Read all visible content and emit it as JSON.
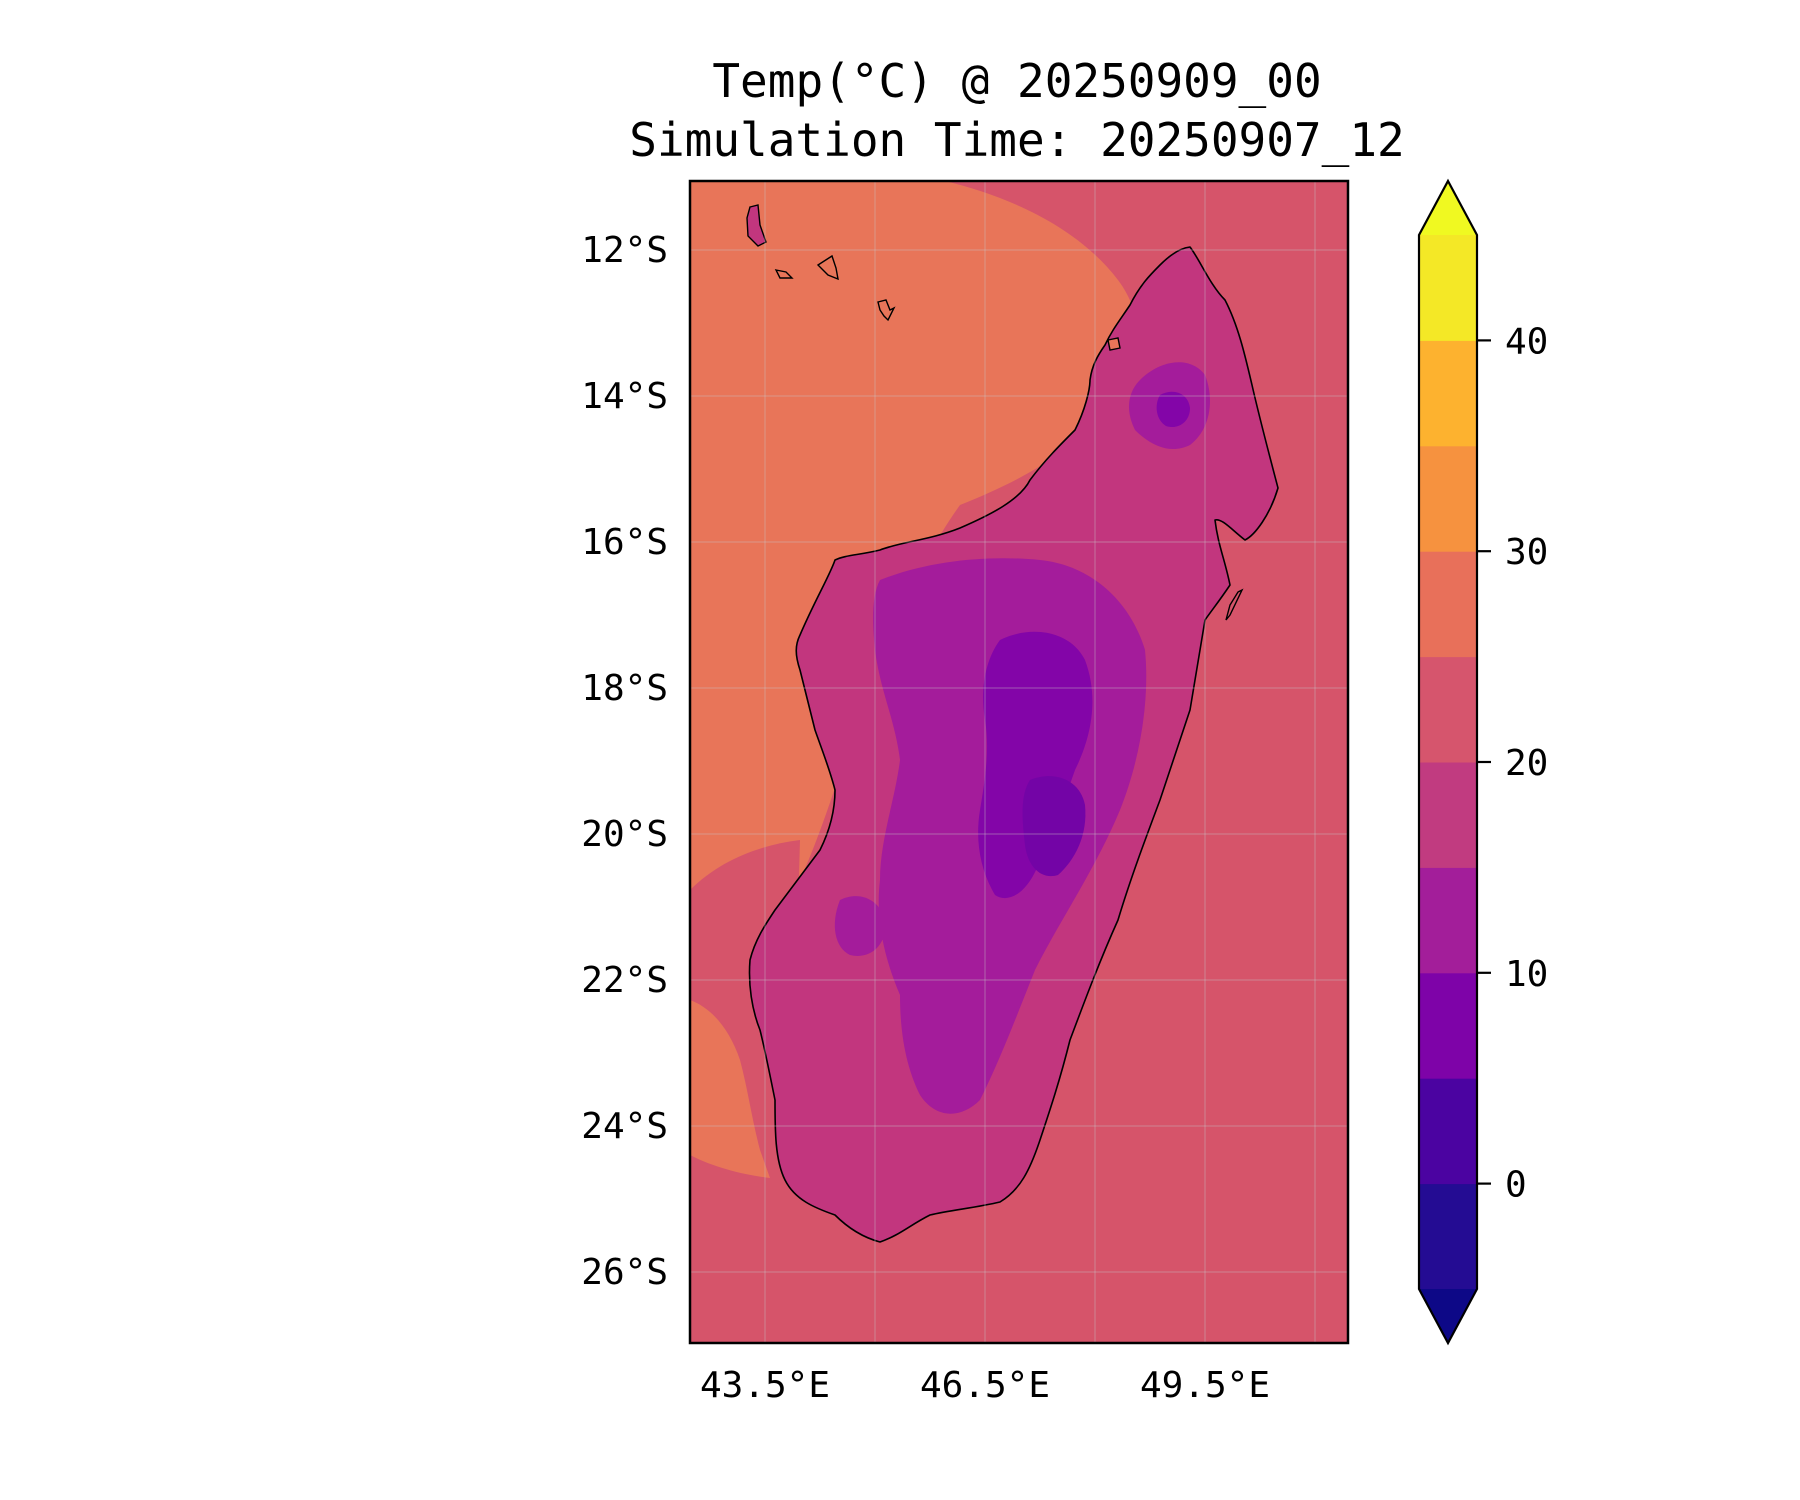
{
  "title": {
    "line1": "Temp(°C) @ 20250909_00",
    "line2": "Simulation Time: 20250907_12"
  },
  "map": {
    "lat_ticks": [
      "12°S",
      "14°S",
      "16°S",
      "18°S",
      "20°S",
      "22°S",
      "24°S",
      "26°S"
    ],
    "lon_ticks": [
      "43.5°E",
      "46.5°E",
      "49.5°E"
    ],
    "lon_range": [
      42.5,
      51.5
    ],
    "lat_range": [
      -27,
      -11
    ],
    "grid": true,
    "coastlines": true,
    "colors": {
      "ocean_east": "#d6546a",
      "ocean_west": "#e87559",
      "land_coast": "#c2367e",
      "land_mid": "#a41c9b",
      "land_highland": "#8305a8"
    }
  },
  "colorbar": {
    "label_ticks": [
      "0",
      "10",
      "20",
      "30",
      "40"
    ],
    "tick_values": [
      0,
      10,
      20,
      30,
      40
    ],
    "min": -5,
    "max": 45,
    "step": 5,
    "extend": "both",
    "band_colors": [
      "#240c93",
      "#4b03a1",
      "#7e03a8",
      "#a31e9a",
      "#c13b80",
      "#d6556d",
      "#e8705a",
      "#f6923f",
      "#fdb22f",
      "#f4e826"
    ],
    "under_color": "#0d0887",
    "over_color": "#f0f921"
  }
}
